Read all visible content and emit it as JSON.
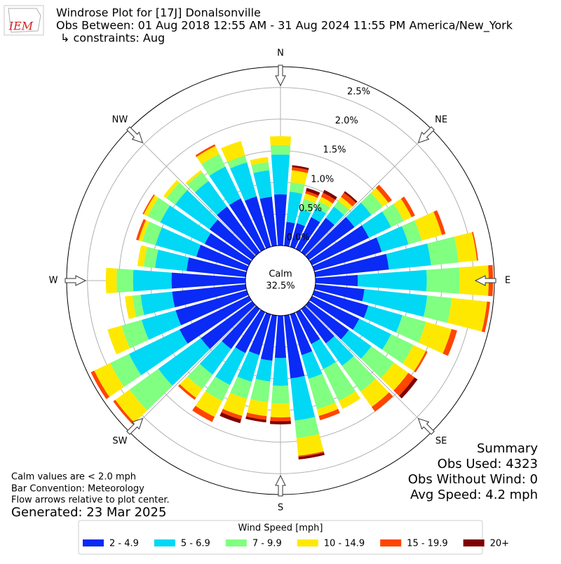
{
  "logo_text": "IEM",
  "chart_data": {
    "type": "windrose",
    "title": "Windrose Plot for [17J] Donalsonville",
    "subtitle": "Obs Between: 01 Aug 2018 12:55 AM - 31 Aug 2024 11:55 PM America/New_York",
    "constraints": "↳ constraints: Aug",
    "calm_label": "Calm",
    "calm_value": 32.5,
    "calm_value_label": "32.5%",
    "x": [
      0,
      10,
      20,
      30,
      40,
      50,
      60,
      70,
      80,
      90,
      100,
      110,
      120,
      130,
      140,
      150,
      160,
      170,
      180,
      190,
      200,
      210,
      220,
      230,
      240,
      250,
      260,
      270,
      280,
      290,
      300,
      310,
      320,
      330,
      340,
      350
    ],
    "xticks": [
      {
        "value": 0,
        "label": "N"
      },
      {
        "value": 45,
        "label": "NE"
      },
      {
        "value": 90,
        "label": "E"
      },
      {
        "value": 135,
        "label": "SE"
      },
      {
        "value": 180,
        "label": "S"
      },
      {
        "value": 225,
        "label": "SW"
      },
      {
        "value": 270,
        "label": "W"
      },
      {
        "value": 315,
        "label": "NW"
      }
    ],
    "ylim": [
      0,
      2.83
    ],
    "yticks": [
      {
        "value": 0,
        "label": "0.0%"
      },
      {
        "value": 0.5,
        "label": "0.5%"
      },
      {
        "value": 1,
        "label": "1.0%"
      },
      {
        "value": 1.5,
        "label": "1.5%"
      },
      {
        "value": 2,
        "label": "2.0%"
      },
      {
        "value": 2.5,
        "label": "2.5%"
      }
    ],
    "grid": true,
    "legend_title": "Wind Speed [mph]",
    "series": [
      {
        "name": "2 - 4.9",
        "color": "#0a2af5",
        "values": [
          0.81,
          0.38,
          0.39,
          0.56,
          0.67,
          0.89,
          1.0,
          1.11,
          1.17,
          0.67,
          0.78,
          0.89,
          0.83,
          0.78,
          0.67,
          0.56,
          0.67,
          1.0,
          0.67,
          0.72,
          0.67,
          0.72,
          0.78,
          1.0,
          1.22,
          1.17,
          1.17,
          1.17,
          0.94,
          0.83,
          0.78,
          0.83,
          0.89,
          0.89,
          0.83,
          0.78
        ]
      },
      {
        "name": "5 - 6.9",
        "color": "#00d8f5",
        "values": [
          0.63,
          0.48,
          0.23,
          0.17,
          0.22,
          0.33,
          0.39,
          0.44,
          0.67,
          1.09,
          1.0,
          0.56,
          0.56,
          0.44,
          0.44,
          0.44,
          0.39,
          0.67,
          0.44,
          0.33,
          0.44,
          0.56,
          0.5,
          0.83,
          0.89,
          0.56,
          0.5,
          0.61,
          0.5,
          0.67,
          0.78,
          0.67,
          0.5,
          0.56,
          0.56,
          0.42
        ]
      },
      {
        "name": "7 - 9.9",
        "color": "#80ff80",
        "values": [
          0.15,
          0.15,
          0.17,
          0.11,
          0.11,
          0.22,
          0.22,
          0.22,
          0.44,
          0.52,
          0.39,
          0.39,
          0.39,
          0.44,
          0.5,
          0.56,
          0.5,
          0.28,
          0.28,
          0.33,
          0.28,
          0.28,
          0.28,
          0.56,
          0.33,
          0.33,
          0.13,
          0.26,
          0.18,
          0.22,
          0.22,
          0.17,
          0.17,
          0.22,
          0.11,
          0.13
        ]
      },
      {
        "name": "10 - 14.9",
        "color": "#ffe800",
        "values": [
          0.14,
          0.19,
          0.09,
          0.08,
          0.08,
          0.11,
          0.14,
          0.33,
          0.29,
          0.46,
          0.56,
          0.42,
          0.22,
          0.28,
          0.3,
          0.14,
          0.11,
          0.28,
          0.22,
          0.22,
          0.28,
          0.28,
          0.17,
          0.28,
          0.28,
          0.23,
          0.12,
          0.17,
          0.1,
          0.06,
          0.07,
          0.06,
          0.04,
          0.14,
          0.24,
          0.08
        ]
      },
      {
        "name": "15 - 19.9",
        "color": "#ff4500",
        "values": [
          0,
          0.05,
          0.04,
          0.07,
          0.08,
          0.07,
          0.06,
          0.06,
          0.02,
          0.07,
          0.05,
          0.09,
          0.03,
          0.12,
          0.09,
          0,
          0.07,
          0.02,
          0.06,
          0.06,
          0.06,
          0.09,
          0.04,
          0.04,
          0.06,
          0,
          0,
          0,
          0,
          0.04,
          0.02,
          0,
          0,
          0.03,
          0,
          0
        ]
      },
      {
        "name": "20+",
        "color": "#800000",
        "values": [
          0,
          0.03,
          0.05,
          0.05,
          0.03,
          0,
          0,
          0,
          0,
          0,
          0,
          0,
          0,
          0.06,
          0,
          0,
          0,
          0.04,
          0.05,
          0.04,
          0.06,
          0,
          0,
          0,
          0,
          0,
          0,
          0,
          0,
          0,
          0,
          0,
          0,
          0,
          0,
          0
        ]
      }
    ],
    "notes": [
      "Calm values are < 2.0 mph",
      "Bar Convention: Meteorology",
      "Flow arrows relative to plot center."
    ],
    "generated": "Generated: 23 Mar 2025",
    "summary": [
      "Summary",
      "Obs Used: 4323",
      "Obs Without Wind: 0",
      "Avg Speed: 4.2 mph"
    ]
  }
}
